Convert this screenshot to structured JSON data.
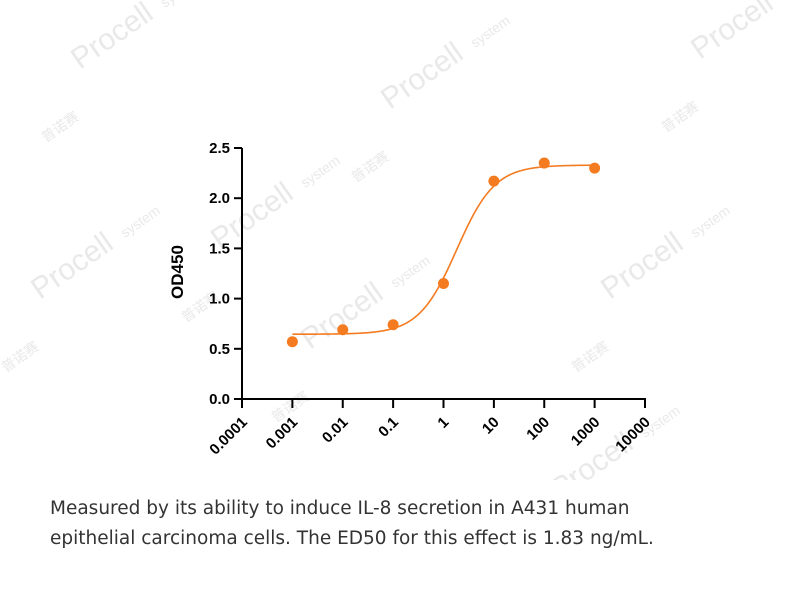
{
  "colors": {
    "series": "#F47B20",
    "axis": "#000000",
    "caption": "#333333",
    "watermark": "#e9e9e9"
  },
  "watermark": {
    "text": "Procell",
    "suffix": "system",
    "brand_cn": "普诺赛"
  },
  "caption": {
    "line1": "Measured by its ability to induce IL-8 secretion in A431 human",
    "line2": "epithelial carcinoma cells. The ED50 for this effect is 1.83 ng/mL."
  },
  "chart_data": {
    "type": "scatter",
    "title": "",
    "xlabel": "",
    "ylabel": "OD450",
    "x_scale": "log",
    "x_ticks": [
      "0.0001",
      "0.001",
      "0.01",
      "0.1",
      "1",
      "10",
      "100",
      "1000",
      "10000"
    ],
    "y_ticks": [
      "0.0",
      "0.5",
      "1.0",
      "1.5",
      "2.0",
      "2.5"
    ],
    "xlim": [
      0.0001,
      10000
    ],
    "ylim": [
      0,
      2.5
    ],
    "grid": false,
    "series": [
      {
        "x": [
          0.001,
          0.01,
          0.1,
          1,
          10,
          100,
          1000
        ],
        "y": [
          0.57,
          0.69,
          0.74,
          1.15,
          2.17,
          2.35,
          2.3
        ],
        "color": "#F47B20",
        "fit_curve": "four-parameter logistic"
      }
    ]
  }
}
